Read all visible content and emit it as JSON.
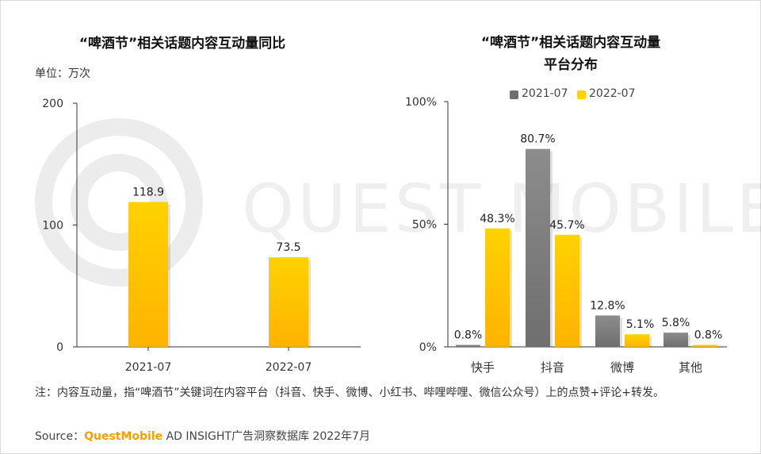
{
  "watermark": "QUEST MOBILE",
  "left_chart": {
    "title": "“啤酒节”相关话题内容互动量同比",
    "unit": "单位：万次"
  },
  "right_chart": {
    "title_line1": "“啤酒节”相关话题内容互动量",
    "title_line2": "平台分布"
  },
  "colors": {
    "gold_top": "#ffd200",
    "gold_bottom": "#ffb300",
    "gray_top": "#8c8c8c",
    "gray_bottom": "#6f6f6f",
    "axis": "#333333"
  },
  "chart_data": [
    {
      "type": "bar",
      "title": "“啤酒节”相关话题内容互动量同比",
      "categories": [
        "2021-07",
        "2022-07"
      ],
      "values": [
        118.9,
        73.5
      ],
      "value_labels": [
        "118.9",
        "73.5"
      ],
      "ylim": [
        0,
        200
      ],
      "yticks": [
        "0",
        "100",
        "200"
      ],
      "ylabel": "单位：万次"
    },
    {
      "type": "bar",
      "title": "“啤酒节”相关话题内容互动量平台分布",
      "categories": [
        "快手",
        "抖音",
        "微博",
        "其他"
      ],
      "series": [
        {
          "name": "2021-07",
          "values": [
            0.8,
            80.7,
            12.8,
            5.8
          ],
          "labels": [
            "0.8%",
            "80.7%",
            "12.8%",
            "5.8%"
          ]
        },
        {
          "name": "2022-07",
          "values": [
            48.3,
            45.7,
            5.1,
            0.8
          ],
          "labels": [
            "48.3%",
            "45.7%",
            "5.1%",
            "0.8%"
          ]
        }
      ],
      "ylim": [
        0,
        100
      ],
      "yticks": [
        "0%",
        "50%",
        "100%"
      ],
      "legend": "top-center"
    }
  ],
  "note": "注：内容互动量，指“啤酒节”关键词在内容平台（抖音、快手、微博、小红书、哔哩哔哩、微信公众号）上的点赞+评论+转发。",
  "source": {
    "prefix": "Source：",
    "brand": "QuestMobile",
    "suffix": " AD INSIGHT广告洞察数据库 2022年7月"
  }
}
